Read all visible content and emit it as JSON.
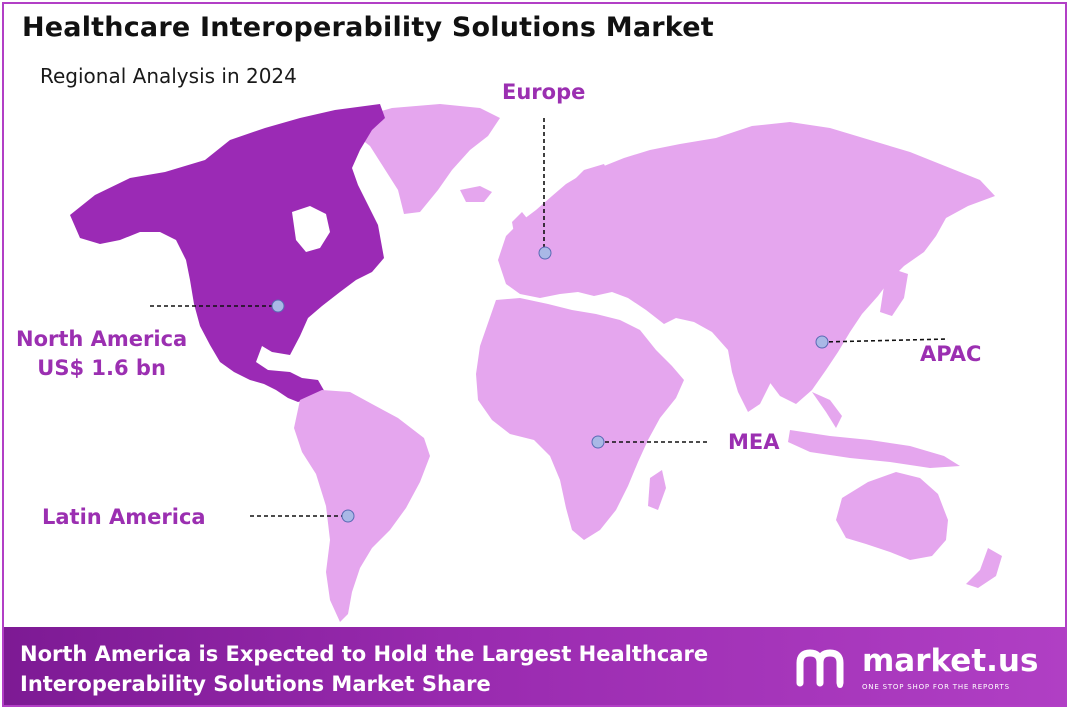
{
  "title": "Healthcare Interoperability Solutions Market",
  "subtitle": "Regional Analysis in 2024",
  "regions": {
    "north_america": {
      "name": "North America",
      "value": "US$ 1.6 bn"
    },
    "europe": {
      "name": "Europe"
    },
    "apac": {
      "name": "APAC"
    },
    "mea": {
      "name": "MEA"
    },
    "latin_america": {
      "name": "Latin America"
    }
  },
  "banner": {
    "line1": "North America is Expected to Hold the Largest Healthcare",
    "line2": "Interoperability Solutions Market Share"
  },
  "logo": {
    "name": "market.us",
    "tagline": "ONE STOP SHOP FOR THE REPORTS"
  },
  "colors": {
    "highlight_region": "#9b2ab5",
    "other_regions": "#e5a6ee",
    "label": "#9b2fb1",
    "marker": "#a9b8e6",
    "banner": "#8a24a2"
  }
}
